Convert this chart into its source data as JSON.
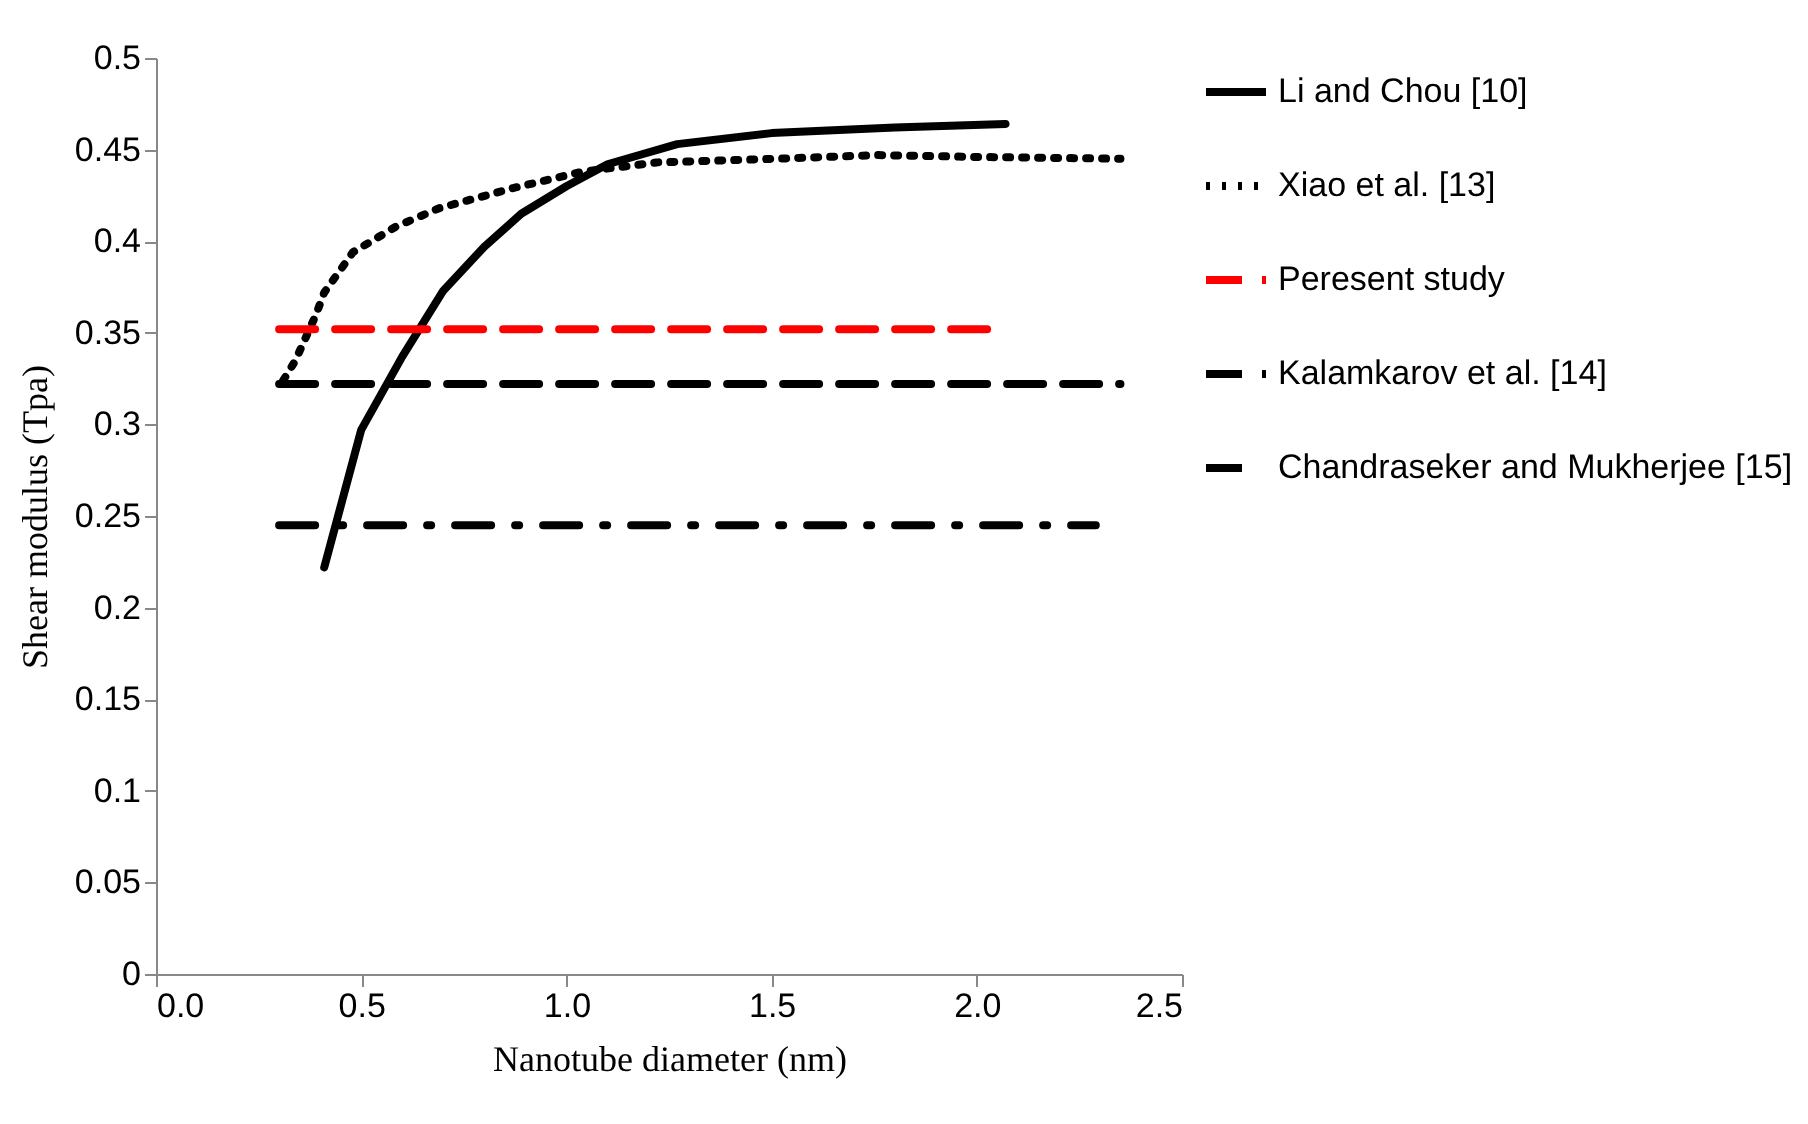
{
  "chart_data": {
    "type": "line",
    "xlabel": "Nanotube diameter (nm)",
    "ylabel": "Shear modulus (Tpa)",
    "xlim": [
      0,
      2.5
    ],
    "ylim": [
      0,
      0.5
    ],
    "xticks": [
      {
        "value": 0,
        "label": "0.0"
      },
      {
        "value": 0.5,
        "label": "0.5"
      },
      {
        "value": 1,
        "label": "1.0"
      },
      {
        "value": 1.5,
        "label": "1.5"
      },
      {
        "value": 2,
        "label": "2.0"
      },
      {
        "value": 2.5,
        "label": "2.5"
      }
    ],
    "yticks": [
      0,
      0.05,
      0.1,
      0.15,
      0.2,
      0.25,
      0.3,
      0.35,
      0.4,
      0.45,
      0.5
    ],
    "grid": false,
    "legend": "right",
    "marker": "none",
    "series": [
      {
        "name": "Li and Chou [10]",
        "color": "#000000",
        "line_style": "solid",
        "x": [
          0.41,
          0.5,
          0.6,
          0.7,
          0.8,
          0.89,
          1.0,
          1.1,
          1.27,
          1.5,
          1.8,
          2.07
        ],
        "values": [
          0.222,
          0.297,
          0.337,
          0.373,
          0.397,
          0.415,
          0.43,
          0.442,
          0.453,
          0.459,
          0.462,
          0.464
        ]
      },
      {
        "name": "Xiao et al. [13]",
        "color": "#000000",
        "line_style": "dotted",
        "x": [
          0.31,
          0.34,
          0.39,
          0.41,
          0.48,
          0.585,
          0.69,
          0.87,
          1.04,
          1.22,
          1.51,
          1.76,
          2.0,
          2.35
        ],
        "values": [
          0.324,
          0.335,
          0.36,
          0.372,
          0.394,
          0.408,
          0.418,
          0.429,
          0.438,
          0.443,
          0.445,
          0.447,
          0.446,
          0.445
        ]
      },
      {
        "name": "Peresent study",
        "color": "#ff0000",
        "line_style": "dashed",
        "x": [
          0.3,
          2.05
        ],
        "values": [
          0.352,
          0.352
        ]
      },
      {
        "name": "Kalamkarov et al. [14]",
        "color": "#000000",
        "line_style": "dashed",
        "x": [
          0.3,
          2.35
        ],
        "values": [
          0.322,
          0.322
        ]
      },
      {
        "name": "Chandraseker and Mukherjee [15]",
        "color": "#000000",
        "line_style": "dashdot",
        "x": [
          0.3,
          2.29
        ],
        "values": [
          0.245,
          0.245
        ]
      }
    ]
  }
}
